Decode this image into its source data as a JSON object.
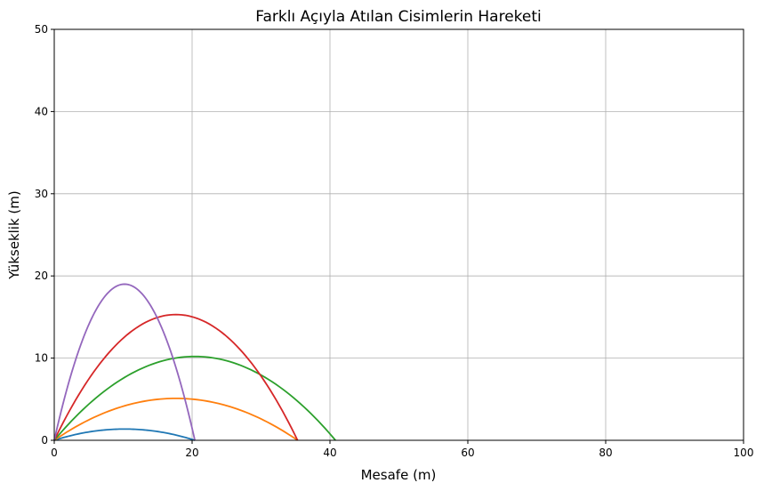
{
  "chart_data": {
    "type": "line",
    "title": "Farklı Açıyla Atılan Cisimlerin Hareketi",
    "xlabel": "Mesafe (m)",
    "ylabel": "Yükseklik (m)",
    "xlim": [
      0,
      100
    ],
    "ylim": [
      0,
      50
    ],
    "x_ticks": [
      "0",
      "20",
      "40",
      "60",
      "80",
      "100"
    ],
    "y_ticks": [
      "0",
      "10",
      "20",
      "30",
      "40",
      "50"
    ],
    "grid": true,
    "legend": "none",
    "series": [
      {
        "color": "#1f77b4",
        "range": 20.4,
        "max_height": 1.37
      },
      {
        "color": "#ff7f0e",
        "range": 35.3,
        "max_height": 5.1
      },
      {
        "color": "#2ca02c",
        "range": 40.8,
        "max_height": 10.2
      },
      {
        "color": "#d62728",
        "range": 35.3,
        "max_height": 15.3
      },
      {
        "color": "#9467bd",
        "range": 20.4,
        "max_height": 19.0
      }
    ]
  }
}
